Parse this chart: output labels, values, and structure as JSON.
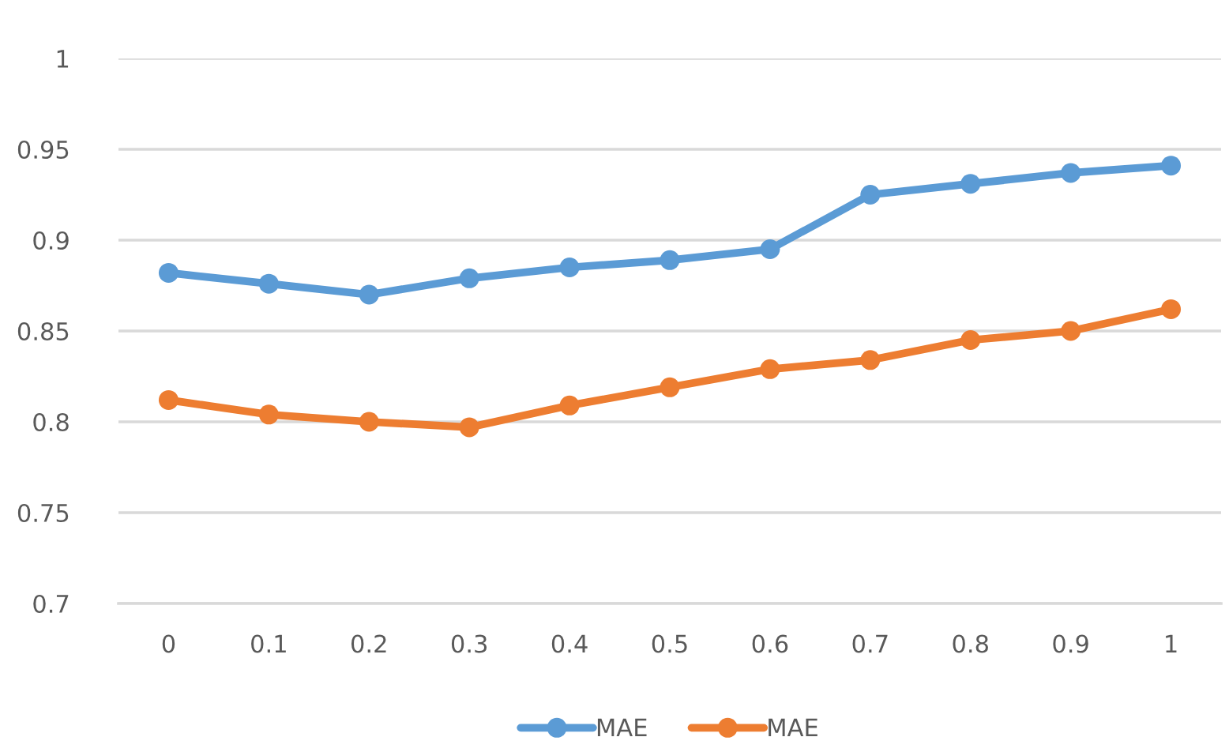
{
  "chart_data": {
    "type": "line",
    "categories": [
      "0",
      "0.1",
      "0.2",
      "0.3",
      "0.4",
      "0.5",
      "0.6",
      "0.7",
      "0.8",
      "0.9",
      "1"
    ],
    "series": [
      {
        "name": "MAE",
        "color": "#5b9bd5",
        "values": [
          0.882,
          0.876,
          0.87,
          0.879,
          0.885,
          0.889,
          0.895,
          0.925,
          0.931,
          0.937,
          0.941
        ]
      },
      {
        "name": "MAE",
        "color": "#ed7d31",
        "values": [
          0.812,
          0.804,
          0.8,
          0.797,
          0.809,
          0.819,
          0.829,
          0.834,
          0.845,
          0.85,
          0.862
        ]
      }
    ],
    "ylim": [
      0.7,
      1
    ],
    "yticks": [
      0.7,
      0.75,
      0.8,
      0.85,
      0.9,
      0.95,
      1
    ],
    "grid": "y",
    "legend": "bottom",
    "marker": "circle",
    "line_style": "solid"
  }
}
